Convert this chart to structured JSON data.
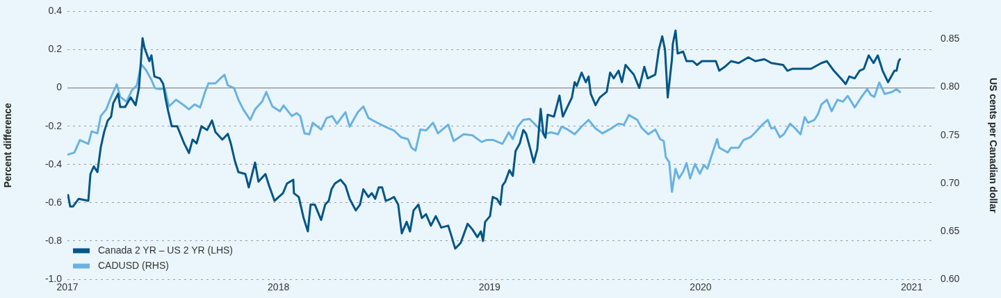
{
  "chart_data": {
    "type": "line",
    "ylabel": "Percent difference",
    "y2label": "US cents per Canadian dollar",
    "xlim": [
      2017,
      2021.11
    ],
    "xticks": [
      2017,
      2018,
      2019,
      2020,
      2021
    ],
    "ylim": [
      -1,
      0.4
    ],
    "yticks": [
      0.4,
      0.2,
      0,
      -0.2,
      -0.4,
      -0.6,
      -0.8,
      {
        "value": -1,
        "label": "-1.0"
      }
    ],
    "y2lim": [
      0.6,
      0.879
    ],
    "y2ticks": [
      0.85,
      {
        "value": 0.8,
        "label": "0.80"
      },
      0.75,
      {
        "value": 0.7,
        "label": "0.70"
      },
      0.65,
      {
        "value": 0.6,
        "label": "0.60"
      }
    ],
    "grid": "y",
    "legend": "bottom left",
    "line_style": "solid",
    "ref_lines": [
      {
        "axis": "y",
        "value": 0,
        "color": "#8c8c8c",
        "line_style": "solid"
      }
    ],
    "series": [
      {
        "name": "Canada 2 YR – US 2 YR (LHS)",
        "color": "#005587",
        "x": [
          2017.003,
          2017.013,
          2017.026,
          2017.053,
          2017.099,
          2017.109,
          2017.125,
          2017.142,
          2017.158,
          2017.174,
          2017.191,
          2017.207,
          2017.217,
          2017.24,
          2017.25,
          2017.273,
          2017.3,
          2017.323,
          2017.339,
          2017.356,
          2017.365,
          2017.388,
          2017.398,
          2017.412,
          2017.438,
          2017.454,
          2017.464,
          2017.477,
          2017.494,
          2017.52,
          2017.553,
          2017.576,
          2017.593,
          2017.612,
          2017.635,
          2017.662,
          2017.685,
          2017.701,
          2017.734,
          2017.76,
          2017.774,
          2017.793,
          2017.81,
          2017.843,
          2017.859,
          2017.889,
          2017.905,
          2017.938,
          2017.955,
          2017.981,
          2018.021,
          2018.04,
          2018.07,
          2018.073,
          2018.096,
          2018.119,
          2018.139,
          2018.152,
          2018.172,
          2018.202,
          2018.221,
          2018.238,
          2018.251,
          2018.267,
          2018.294,
          2018.317,
          2018.337,
          2018.366,
          2018.386,
          2018.402,
          2018.426,
          2018.442,
          2018.458,
          2018.475,
          2018.491,
          2018.508,
          2018.531,
          2018.547,
          2018.567,
          2018.584,
          2018.607,
          2018.623,
          2018.64,
          2018.663,
          2018.679,
          2018.699,
          2018.722,
          2018.745,
          2018.771,
          2018.804,
          2018.821,
          2018.837,
          2018.863,
          2018.896,
          2018.919,
          2018.942,
          2018.959,
          2018.969,
          2018.979,
          2019.002,
          2019.015,
          2019.035,
          2019.051,
          2019.061,
          2019.074,
          2019.094,
          2019.11,
          2019.123,
          2019.143,
          2019.16,
          2019.173,
          2019.193,
          2019.209,
          2019.226,
          2019.242,
          2019.255,
          2019.265,
          2019.275,
          2019.305,
          2019.331,
          2019.347,
          2019.364,
          2019.39,
          2019.403,
          2019.413,
          2019.436,
          2019.456,
          2019.469,
          2019.479,
          2019.502,
          2019.522,
          2019.555,
          2019.571,
          2019.588,
          2019.611,
          2019.627,
          2019.644,
          2019.667,
          2019.683,
          2019.709,
          2019.733,
          2019.749,
          2019.785,
          2019.802,
          2019.818,
          2019.831,
          2019.844,
          2019.864,
          2019.868,
          2019.881,
          2019.891,
          2019.917,
          2019.933,
          2019.963,
          2019.983,
          2020.006,
          2020.029,
          2020.072,
          2020.088,
          2020.114,
          2020.144,
          2020.18,
          2020.226,
          2020.259,
          2020.302,
          2020.335,
          2020.391,
          2020.411,
          2020.434,
          2020.477,
          2020.523,
          2020.572,
          2020.598,
          2020.631,
          2020.664,
          2020.687,
          2020.704,
          2020.73,
          2020.753,
          2020.773,
          2020.796,
          2020.819,
          2020.839,
          2020.862,
          2020.888,
          2020.918,
          2020.928,
          2020.938,
          2020.944
        ],
        "values": [
          -0.56,
          -0.62,
          -0.62,
          -0.58,
          -0.59,
          -0.45,
          -0.41,
          -0.44,
          -0.31,
          -0.23,
          -0.17,
          -0.15,
          -0.08,
          -0.03,
          -0.1,
          -0.1,
          -0.05,
          -0.09,
          0,
          0.26,
          0.21,
          0.14,
          0.17,
          0.06,
          0.05,
          0.02,
          -0.05,
          -0.12,
          -0.2,
          -0.2,
          -0.29,
          -0.34,
          -0.27,
          -0.29,
          -0.2,
          -0.22,
          -0.17,
          -0.23,
          -0.27,
          -0.24,
          -0.29,
          -0.38,
          -0.44,
          -0.45,
          -0.52,
          -0.39,
          -0.49,
          -0.45,
          -0.51,
          -0.59,
          -0.55,
          -0.5,
          -0.48,
          -0.55,
          -0.57,
          -0.68,
          -0.75,
          -0.61,
          -0.61,
          -0.69,
          -0.61,
          -0.59,
          -0.53,
          -0.5,
          -0.48,
          -0.51,
          -0.58,
          -0.64,
          -0.61,
          -0.53,
          -0.57,
          -0.55,
          -0.58,
          -0.52,
          -0.52,
          -0.59,
          -0.58,
          -0.57,
          -0.61,
          -0.76,
          -0.7,
          -0.75,
          -0.64,
          -0.61,
          -0.68,
          -0.66,
          -0.72,
          -0.67,
          -0.73,
          -0.72,
          -0.78,
          -0.84,
          -0.81,
          -0.71,
          -0.74,
          -0.78,
          -0.75,
          -0.8,
          -0.7,
          -0.67,
          -0.57,
          -0.58,
          -0.61,
          -0.51,
          -0.49,
          -0.43,
          -0.46,
          -0.33,
          -0.29,
          -0.22,
          -0.24,
          -0.32,
          -0.39,
          -0.32,
          -0.11,
          -0.24,
          -0.26,
          -0.14,
          -0.15,
          -0.04,
          -0.15,
          -0.11,
          -0.05,
          0.03,
          0.01,
          0.08,
          0.03,
          0.06,
          -0.03,
          -0.09,
          -0.05,
          -0.02,
          0.08,
          0.05,
          0.09,
          0.03,
          0.12,
          0.09,
          0.07,
          0,
          0.11,
          0.05,
          0.07,
          0.2,
          0.27,
          0.2,
          -0.05,
          0.15,
          0.23,
          0.3,
          0.18,
          0.19,
          0.14,
          0.14,
          0.12,
          0.14,
          0.14,
          0.14,
          0.09,
          0.11,
          0.14,
          0.13,
          0.16,
          0.14,
          0.15,
          0.13,
          0.12,
          0.09,
          0.1,
          0.1,
          0.1,
          0.13,
          0.14,
          0.09,
          0.05,
          0.02,
          0.06,
          0.05,
          0.09,
          0.1,
          0.17,
          0.13,
          0.17,
          0.09,
          0.03,
          0.09,
          0.09,
          0.14,
          0.15
        ]
      },
      {
        "name": "CADUSD (RHS)",
        "color": "#6ab2e2",
        "axis": "y2",
        "x": [
          2017.003,
          2017.033,
          2017.059,
          2017.099,
          2017.115,
          2017.142,
          2017.158,
          2017.184,
          2017.207,
          2017.234,
          2017.25,
          2017.28,
          2017.306,
          2017.329,
          2017.349,
          2017.372,
          2017.395,
          2017.415,
          2017.438,
          2017.461,
          2017.481,
          2017.514,
          2017.547,
          2017.576,
          2017.602,
          2017.629,
          2017.652,
          2017.668,
          2017.701,
          2017.724,
          2017.744,
          2017.76,
          2017.79,
          2017.81,
          2017.833,
          2017.866,
          2017.889,
          2017.922,
          2017.942,
          2017.971,
          2018.007,
          2018.024,
          2018.063,
          2018.086,
          2018.103,
          2018.123,
          2018.146,
          2018.162,
          2018.202,
          2018.228,
          2018.254,
          2018.277,
          2018.317,
          2018.337,
          2018.376,
          2018.402,
          2018.426,
          2018.468,
          2018.514,
          2018.547,
          2018.58,
          2018.613,
          2018.63,
          2018.649,
          2018.672,
          2018.699,
          2018.732,
          2018.755,
          2018.804,
          2018.83,
          2018.877,
          2018.919,
          2018.962,
          2018.985,
          2019.018,
          2019.061,
          2019.091,
          2019.11,
          2019.133,
          2019.16,
          2019.189,
          2019.226,
          2019.258,
          2019.291,
          2019.324,
          2019.341,
          2019.37,
          2019.403,
          2019.436,
          2019.469,
          2019.502,
          2019.535,
          2019.568,
          2019.611,
          2019.637,
          2019.66,
          2019.7,
          2019.719,
          2019.752,
          2019.785,
          2019.808,
          2019.825,
          2019.835,
          2019.851,
          2019.864,
          2019.881,
          2019.897,
          2019.917,
          2019.933,
          2019.95,
          2019.973,
          2019.996,
          2020.016,
          2020.032,
          2020.049,
          2020.078,
          2020.088,
          2020.128,
          2020.144,
          2020.18,
          2020.203,
          2020.236,
          2020.259,
          2020.292,
          2020.318,
          2020.335,
          2020.351,
          2020.375,
          2020.394,
          2020.424,
          2020.444,
          2020.473,
          2020.493,
          2020.509,
          2020.539,
          2020.556,
          2020.572,
          2020.598,
          2020.621,
          2020.648,
          2020.674,
          2020.697,
          2020.73,
          2020.756,
          2020.789,
          2020.806,
          2020.823,
          2020.846,
          2020.872,
          2020.905,
          2020.928,
          2020.944
        ],
        "values": [
          0.73,
          0.732,
          0.745,
          0.741,
          0.754,
          0.752,
          0.77,
          0.777,
          0.79,
          0.803,
          0.79,
          0.785,
          0.797,
          0.802,
          0.824,
          0.818,
          0.809,
          0.799,
          0.798,
          0.799,
          0.78,
          0.787,
          0.782,
          0.777,
          0.782,
          0.779,
          0.795,
          0.804,
          0.804,
          0.809,
          0.813,
          0.802,
          0.799,
          0.787,
          0.777,
          0.766,
          0.777,
          0.785,
          0.795,
          0.78,
          0.775,
          0.781,
          0.77,
          0.773,
          0.77,
          0.752,
          0.751,
          0.763,
          0.756,
          0.768,
          0.77,
          0.762,
          0.774,
          0.759,
          0.774,
          0.78,
          0.768,
          0.763,
          0.758,
          0.755,
          0.748,
          0.746,
          0.737,
          0.734,
          0.756,
          0.755,
          0.763,
          0.752,
          0.761,
          0.744,
          0.751,
          0.75,
          0.743,
          0.745,
          0.745,
          0.741,
          0.753,
          0.746,
          0.759,
          0.766,
          0.767,
          0.759,
          0.751,
          0.753,
          0.751,
          0.759,
          0.756,
          0.751,
          0.759,
          0.766,
          0.757,
          0.752,
          0.756,
          0.762,
          0.761,
          0.771,
          0.766,
          0.758,
          0.751,
          0.756,
          0.746,
          0.744,
          0.727,
          0.722,
          0.691,
          0.715,
          0.705,
          0.712,
          0.721,
          0.705,
          0.72,
          0.71,
          0.719,
          0.715,
          0.727,
          0.746,
          0.737,
          0.732,
          0.737,
          0.737,
          0.745,
          0.748,
          0.753,
          0.761,
          0.766,
          0.757,
          0.758,
          0.748,
          0.751,
          0.762,
          0.758,
          0.751,
          0.769,
          0.763,
          0.766,
          0.772,
          0.782,
          0.787,
          0.775,
          0.787,
          0.785,
          0.791,
          0.779,
          0.788,
          0.798,
          0.792,
          0.79,
          0.805,
          0.793,
          0.795,
          0.798,
          0.795
        ]
      }
    ]
  }
}
